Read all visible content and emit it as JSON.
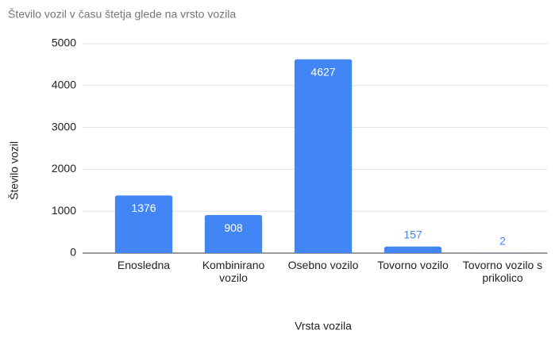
{
  "chart_data": {
    "type": "bar",
    "title": "Število vozil v času štetja glede na vrsto vozila",
    "x_label": "Vrsta vozila",
    "y_label": "Število vozil",
    "categories": [
      "Enosledna",
      "Kombinirano vozilo",
      "Osebno vozilo",
      "Tovorno vozilo",
      "Tovorno vozilo s prikolico"
    ],
    "values": [
      1376,
      908,
      4627,
      157,
      2
    ],
    "color": "#4285f4",
    "ylim": [
      0,
      5000
    ],
    "yticks": [
      0,
      1000,
      2000,
      3000,
      4000,
      5000
    ],
    "grid": true
  }
}
